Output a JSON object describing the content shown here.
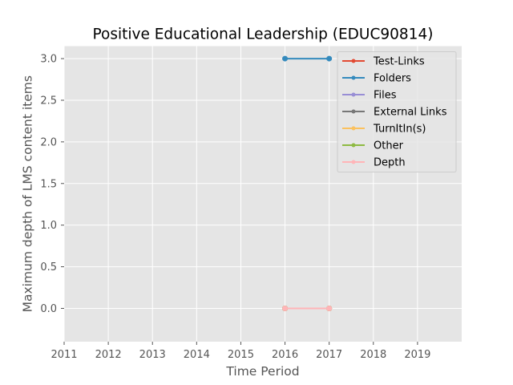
{
  "chart_data": {
    "type": "line",
    "title": "Positive Educational Leadership (EDUC90814)",
    "xlabel": "Time Period",
    "ylabel": "Maximum depth of LMS content items",
    "x_ticks": [
      "2011",
      "2012",
      "2013",
      "2014",
      "2015",
      "2016",
      "2017",
      "2018",
      "2019"
    ],
    "y_ticks": [
      "0.0",
      "0.5",
      "1.0",
      "1.5",
      "2.0",
      "2.5",
      "3.0"
    ],
    "xlim": [
      2011,
      2020
    ],
    "ylim": [
      -0.4,
      3.15
    ],
    "grid": true,
    "legend_position": "top-right",
    "x": [
      2016,
      2017
    ],
    "series": [
      {
        "name": "Test-Links",
        "color": "#E24A33",
        "values": [
          0,
          0
        ]
      },
      {
        "name": "Folders",
        "color": "#348ABD",
        "values": [
          3,
          3
        ]
      },
      {
        "name": "Files",
        "color": "#988ED5",
        "values": [
          0,
          0
        ]
      },
      {
        "name": "External Links",
        "color": "#777777",
        "values": [
          0,
          0
        ]
      },
      {
        "name": "TurnItIn(s)",
        "color": "#FBC15E",
        "values": [
          0,
          0
        ]
      },
      {
        "name": "Other",
        "color": "#8EBA42",
        "values": [
          0,
          0
        ]
      },
      {
        "name": "Depth",
        "color": "#FFB5B8",
        "values": [
          0,
          0
        ]
      }
    ]
  },
  "colors": {
    "plot_background": "#E5E5E5",
    "grid": "#FFFFFF"
  }
}
